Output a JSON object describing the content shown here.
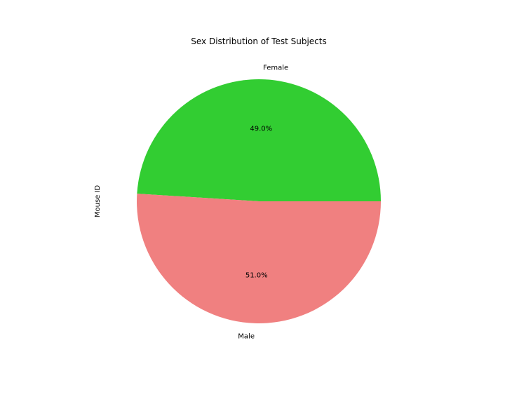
{
  "chart_data": {
    "type": "pie",
    "title": "Sex Distribution of Test Subjects",
    "ylabel": "Mouse ID",
    "slices": [
      {
        "label": "Female",
        "value": 49.0,
        "pct_label": "49.0%",
        "color": "#32cd32"
      },
      {
        "label": "Male",
        "value": 51.0,
        "pct_label": "51.0%",
        "color": "#f08080"
      }
    ],
    "start_angle_deg": 0,
    "direction": "counterclockwise"
  }
}
